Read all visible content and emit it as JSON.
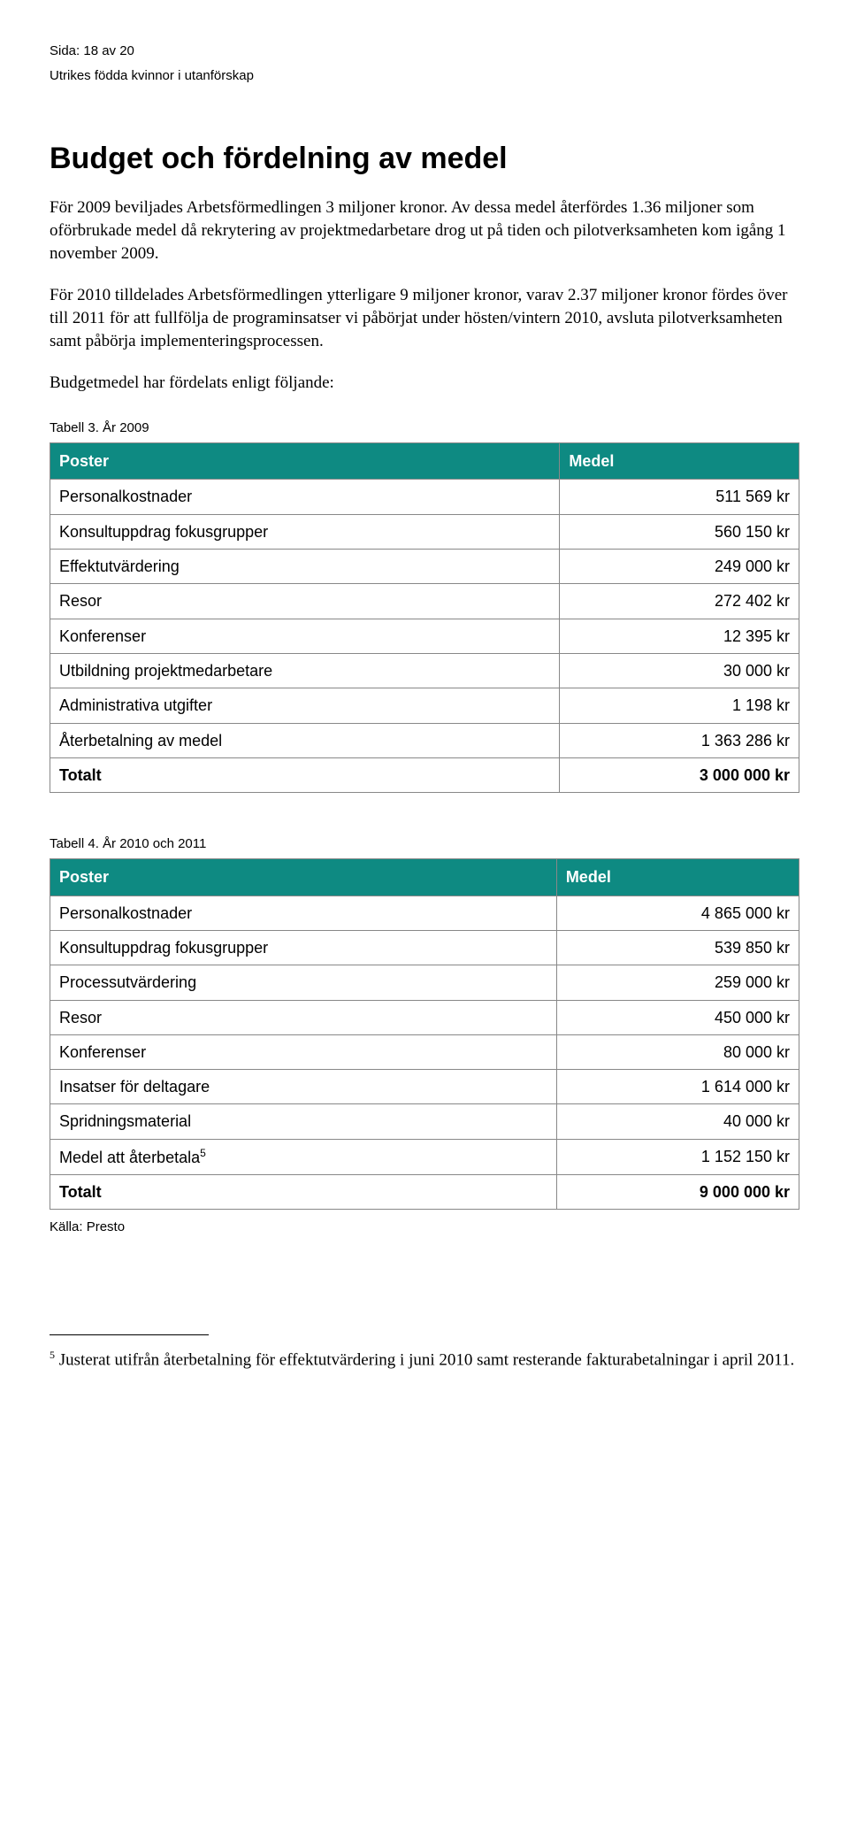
{
  "header": {
    "page_line": "Sida: 18 av 20",
    "subtitle": "Utrikes födda kvinnor i utanförskap"
  },
  "title": "Budget och fördelning av medel",
  "paragraphs": {
    "p1": "För 2009 beviljades Arbetsförmedlingen 3 miljoner kronor. Av dessa medel återfördes 1.36 miljoner som oförbrukade medel då rekrytering av projektmedarbetare drog ut på tiden och pilotverksamheten kom igång 1 november 2009.",
    "p2": "För 2010 tilldelades Arbetsförmedlingen ytterligare 9 miljoner kronor, varav 2.37 miljoner kronor fördes över till 2011 för att fullfölja de programinsatser vi påbörjat under hösten/vintern 2010, avsluta pilotverksamheten samt påbörja implementeringsprocessen.",
    "p3": "Budgetmedel har fördelats enligt följande:"
  },
  "table3": {
    "caption": "Tabell 3. År 2009",
    "header_bg": "#0e8a82",
    "col1": "Poster",
    "col2": "Medel",
    "rows": [
      {
        "label": "Personalkostnader",
        "value": "511 569 kr"
      },
      {
        "label": "Konsultuppdrag fokusgrupper",
        "value": "560 150 kr"
      },
      {
        "label": "Effektutvärdering",
        "value": "249 000 kr"
      },
      {
        "label": "Resor",
        "value": "272 402 kr"
      },
      {
        "label": "Konferenser",
        "value": "12 395 kr"
      },
      {
        "label": "Utbildning projektmedarbetare",
        "value": "30 000 kr"
      },
      {
        "label": "Administrativa utgifter",
        "value": "1 198 kr"
      },
      {
        "label": "Återbetalning av medel",
        "value": "1 363 286 kr"
      }
    ],
    "total": {
      "label": "Totalt",
      "value": "3 000 000 kr"
    }
  },
  "table4": {
    "caption": "Tabell 4. År 2010 och 2011",
    "header_bg": "#0e8a82",
    "col1": "Poster",
    "col2": "Medel",
    "rows": [
      {
        "label": "Personalkostnader",
        "value": "4 865 000 kr"
      },
      {
        "label": "Konsultuppdrag fokusgrupper",
        "value": "539 850 kr"
      },
      {
        "label": "Processutvärdering",
        "value": "259 000 kr"
      },
      {
        "label": "Resor",
        "value": "450 000 kr"
      },
      {
        "label": "Konferenser",
        "value": "80 000 kr"
      },
      {
        "label": "Insatser för deltagare",
        "value": "1 614 000 kr"
      },
      {
        "label": "Spridningsmaterial",
        "value": "40 000 kr"
      },
      {
        "label_html": "Medel att återbetala<span class=\"sup-ref\">5</span>",
        "value": "1 152 150 kr"
      }
    ],
    "total": {
      "label": "Totalt",
      "value": "9 000 000 kr"
    },
    "source": "Källa: Presto"
  },
  "footnote": {
    "marker": "5",
    "text": " Justerat utifrån återbetalning för effektutvärdering i juni 2010 samt resterande fakturabetalningar i april 2011."
  }
}
